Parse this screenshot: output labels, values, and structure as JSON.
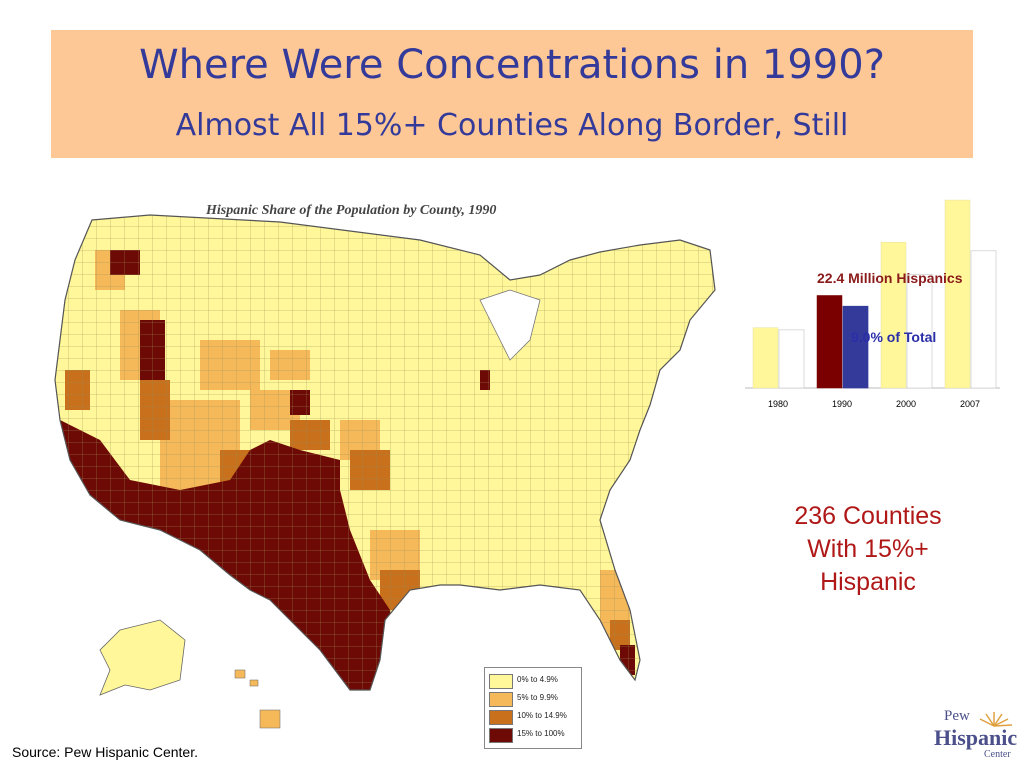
{
  "slide": {
    "title": "Where Were Concentrations in 1990?",
    "subtitle": "Almost All 15%+ Counties Along Border, Still",
    "source": "Source:  Pew Hispanic Center.",
    "counties_note": [
      "236 Counties",
      "With 15%+",
      "Hispanic"
    ]
  },
  "logo": {
    "line1": "Pew",
    "line2": "Hispanic",
    "line3": "Center"
  },
  "colors": {
    "title_band": "#fdc896",
    "title_text": "#333a9a",
    "band_0_5": "#fff799",
    "band_5_10": "#f6b95a",
    "band_10_15": "#c8701c",
    "band_15_100": "#6e0a06",
    "bar_1990_hispanics": "#7a0000",
    "bar_1990_share": "#333a9a",
    "bar_yellow": "#fff799",
    "bar_white": "#ffffff"
  },
  "chart_data": [
    {
      "type": "heatmap",
      "title": "Hispanic Share of the Population by County, 1990",
      "legend": [
        {
          "label": "0% to 4.9%",
          "color": "#fff799"
        },
        {
          "label": "5% to 9.9%",
          "color": "#f6b95a"
        },
        {
          "label": "10% to 14.9%",
          "color": "#c8701c"
        },
        {
          "label": "15% to 100%",
          "color": "#6e0a06"
        }
      ],
      "legend_position": "bottom-right"
    },
    {
      "type": "bar",
      "categories": [
        "1980",
        "1990",
        "2000",
        "2007"
      ],
      "series": [
        {
          "values": [
            14.6,
            22.4,
            35.3,
            45.5
          ]
        },
        {
          "values": [
            6.4,
            9.0,
            12.5,
            15.1
          ]
        }
      ],
      "annotations": [
        "22.4 Million Hispanics",
        "9.0% of Total"
      ],
      "highlight_category": "1990",
      "ylim": [
        0,
        46
      ]
    }
  ]
}
